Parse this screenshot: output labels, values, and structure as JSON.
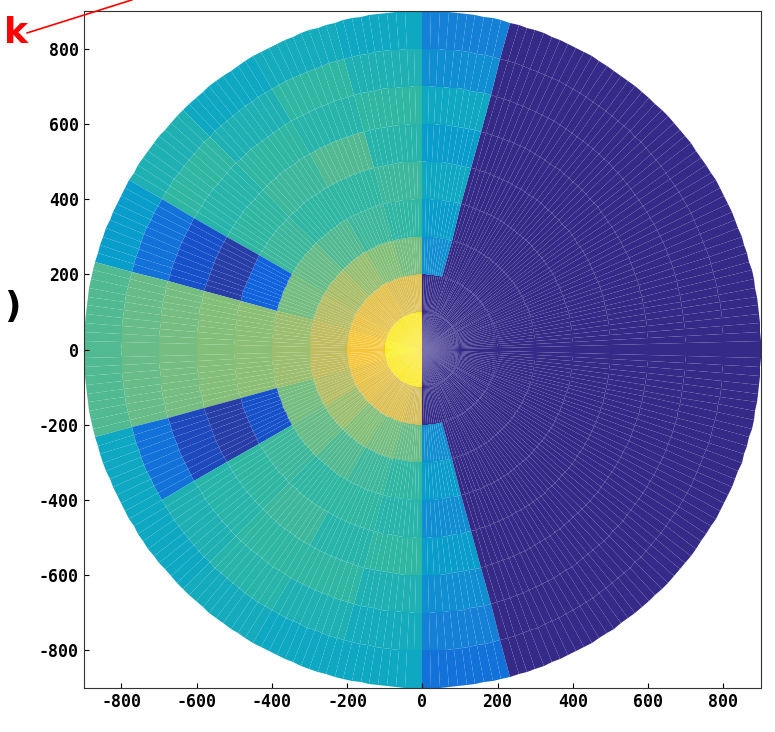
{
  "chart_data": {
    "type": "polar_heatmap",
    "xlim": [
      -900,
      900
    ],
    "ylim": [
      -900,
      900
    ],
    "xticks": [
      -800,
      -600,
      -400,
      -200,
      0,
      200,
      400,
      600,
      800
    ],
    "yticks": [
      -800,
      -600,
      -400,
      -200,
      0,
      200,
      400,
      600,
      800
    ],
    "color_range": [
      0,
      1
    ],
    "theta_edges": [
      0,
      15,
      30,
      45,
      60,
      75,
      90,
      105,
      120,
      135,
      150,
      165,
      180,
      195,
      210,
      225,
      240,
      255,
      270,
      285,
      300,
      315,
      330,
      345,
      360
    ],
    "r_edges": [
      0,
      100,
      200,
      300,
      400,
      500,
      600,
      700,
      800,
      900
    ],
    "cells": [
      [
        0,
        0,
        0,
        0,
        0,
        0,
        0,
        0,
        0
      ],
      [
        0,
        0,
        0,
        0,
        0,
        0,
        0,
        0,
        0
      ],
      [
        0,
        0,
        0,
        0,
        0,
        0,
        0,
        0,
        0
      ],
      [
        0,
        0,
        0,
        0,
        0,
        0,
        0,
        0,
        0
      ],
      [
        0,
        0,
        0,
        0,
        0,
        0,
        0,
        0,
        0
      ],
      [
        0,
        0,
        0.3,
        0.35,
        0.4,
        0.35,
        0.4,
        0.3,
        0.25
      ],
      [
        0.95,
        0.78,
        0.6,
        0.5,
        0.52,
        0.48,
        0.5,
        0.45,
        0.4
      ],
      [
        0.95,
        0.78,
        0.62,
        0.52,
        0.5,
        0.55,
        0.48,
        0.5,
        0.42
      ],
      [
        0.95,
        0.8,
        0.65,
        0.55,
        0.5,
        0.52,
        0.5,
        0.45,
        0.4
      ],
      [
        0.95,
        0.8,
        0.68,
        0.58,
        0.52,
        0.5,
        0.48,
        0.5,
        0.45
      ],
      [
        0.95,
        0.82,
        0.7,
        0.6,
        0.15,
        0.05,
        0.1,
        0.2,
        0.35
      ],
      [
        0.97,
        0.85,
        0.72,
        0.66,
        0.63,
        0.62,
        0.6,
        0.58,
        0.55
      ],
      [
        0.97,
        0.85,
        0.72,
        0.66,
        0.63,
        0.62,
        0.6,
        0.58,
        0.55
      ],
      [
        0.95,
        0.82,
        0.7,
        0.6,
        0.1,
        0.05,
        0.08,
        0.2,
        0.4
      ],
      [
        0.95,
        0.8,
        0.66,
        0.58,
        0.52,
        0.5,
        0.48,
        0.45,
        0.4
      ],
      [
        0.95,
        0.78,
        0.62,
        0.55,
        0.5,
        0.52,
        0.5,
        0.48,
        0.42
      ],
      [
        0.95,
        0.78,
        0.6,
        0.52,
        0.5,
        0.48,
        0.5,
        0.45,
        0.4
      ],
      [
        0.95,
        0.75,
        0.58,
        0.5,
        0.48,
        0.5,
        0.45,
        0.42,
        0.4
      ],
      [
        0,
        0,
        0.3,
        0.35,
        0.3,
        0.35,
        0.3,
        0.25,
        0.2
      ],
      [
        0,
        0,
        0,
        0,
        0,
        0,
        0,
        0,
        0
      ],
      [
        0,
        0,
        0,
        0,
        0,
        0,
        0,
        0,
        0
      ],
      [
        0,
        0,
        0,
        0,
        0,
        0,
        0,
        0,
        0
      ],
      [
        0,
        0,
        0,
        0,
        0,
        0,
        0,
        0,
        0
      ],
      [
        0,
        0,
        0,
        0,
        0,
        0,
        0,
        0,
        0
      ]
    ],
    "annotations": [
      {
        "text": "k",
        "color": "red"
      },
      {
        "text": ")"
      }
    ]
  }
}
